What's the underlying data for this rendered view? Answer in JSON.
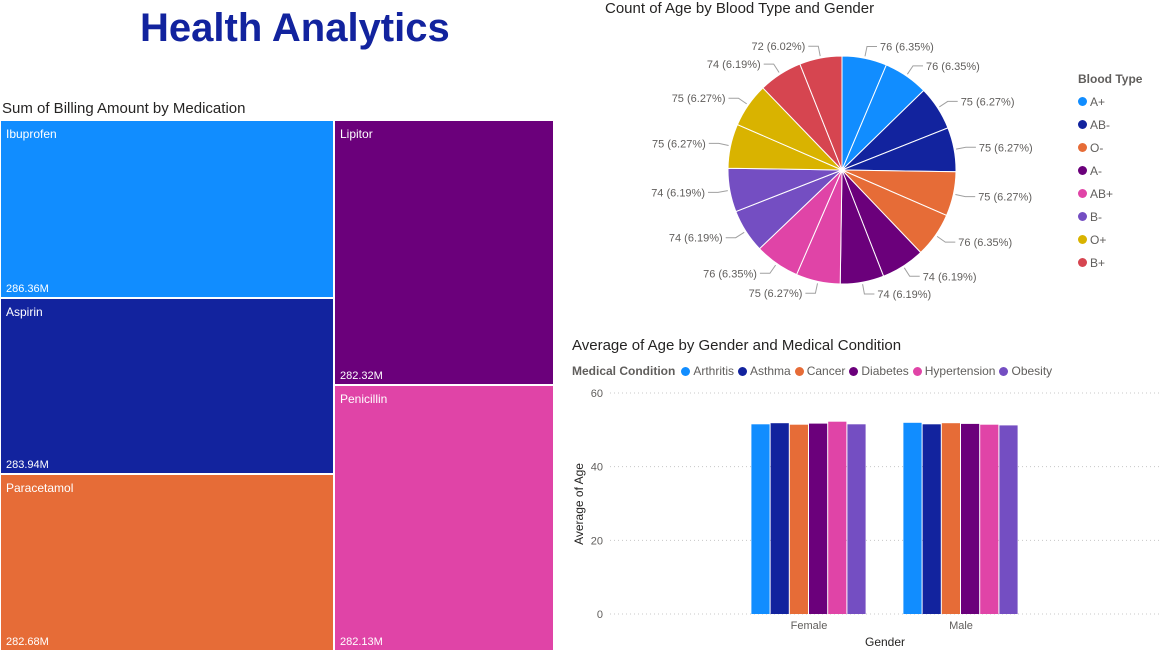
{
  "page": {
    "title": "Health Analytics"
  },
  "colors": {
    "title": "#12239E",
    "A+": "#118DFF",
    "AB-": "#12239E",
    "O-": "#E66C37",
    "A-": "#6B007B",
    "AB+": "#E044A7",
    "B-": "#744EC2",
    "O+": "#D9B300",
    "B+": "#D64550"
  },
  "treemap": {
    "title": "Sum of Billing Amount by Medication",
    "tiles": [
      {
        "label": "Ibuprofen",
        "value": "286.36M",
        "color": "#118DFF"
      },
      {
        "label": "Aspirin",
        "value": "283.94M",
        "color": "#12239E"
      },
      {
        "label": "Paracetamol",
        "value": "282.68M",
        "color": "#E66C37"
      },
      {
        "label": "Lipitor",
        "value": "282.32M",
        "color": "#6B007B"
      },
      {
        "label": "Penicillin",
        "value": "282.13M",
        "color": "#E044A7"
      }
    ]
  },
  "chart_data": [
    {
      "type": "treemap",
      "title": "Sum of Billing Amount by Medication",
      "categories": [
        "Ibuprofen",
        "Aspirin",
        "Paracetamol",
        "Lipitor",
        "Penicillin"
      ],
      "values": [
        286.36,
        283.94,
        282.68,
        282.32,
        282.13
      ],
      "value_labels": [
        "286.36M",
        "283.94M",
        "282.68M",
        "282.32M",
        "282.13M"
      ]
    },
    {
      "type": "pie",
      "title": "Count of Age by Blood Type and Gender",
      "legend_title": "Blood Type",
      "legend": [
        "A+",
        "AB-",
        "O-",
        "A-",
        "AB+",
        "B-",
        "O+",
        "B+"
      ],
      "legend_position": "right",
      "slices": [
        {
          "group": "A+",
          "value": 76,
          "label": "76 (6.35%)"
        },
        {
          "group": "A+",
          "value": 76,
          "label": "76 (6.35%)"
        },
        {
          "group": "AB-",
          "value": 75,
          "label": "75 (6.27%)"
        },
        {
          "group": "AB-",
          "value": 75,
          "label": "75 (6.27%)"
        },
        {
          "group": "O-",
          "value": 75,
          "label": "75 (6.27%)"
        },
        {
          "group": "O-",
          "value": 76,
          "label": "76 (6.35%)"
        },
        {
          "group": "A-",
          "value": 74,
          "label": "74 (6.19%)"
        },
        {
          "group": "A-",
          "value": 74,
          "label": "74 (6.19%)"
        },
        {
          "group": "AB+",
          "value": 75,
          "label": "75 (6.27%)"
        },
        {
          "group": "AB+",
          "value": 76,
          "label": "76 (6.35%)"
        },
        {
          "group": "B-",
          "value": 74,
          "label": "74 (6.19%)"
        },
        {
          "group": "B-",
          "value": 74,
          "label": "74 (6.19%)"
        },
        {
          "group": "O+",
          "value": 75,
          "label": "75 (6.27%)"
        },
        {
          "group": "O+",
          "value": 75,
          "label": "75 (6.27%)"
        },
        {
          "group": "B+",
          "value": 74,
          "label": "74 (6.19%)"
        },
        {
          "group": "B+",
          "value": 72,
          "label": "72 (6.02%)"
        }
      ]
    },
    {
      "type": "bar",
      "title": "Average of Age by Gender and Medical Condition",
      "legend_title": "Medical Condition",
      "legend_position": "top-left",
      "categories": [
        "Female",
        "Male"
      ],
      "xlabel": "Gender",
      "ylabel": "Average of Age",
      "ylim": [
        0,
        60
      ],
      "yticks": [
        0,
        20,
        40,
        60
      ],
      "grid": true,
      "series": [
        {
          "name": "Arthritis",
          "color": "#118DFF",
          "values": [
            51.5,
            51.9
          ]
        },
        {
          "name": "Asthma",
          "color": "#12239E",
          "values": [
            51.8,
            51.5
          ]
        },
        {
          "name": "Cancer",
          "color": "#E66C37",
          "values": [
            51.4,
            51.8
          ]
        },
        {
          "name": "Diabetes",
          "color": "#6B007B",
          "values": [
            51.7,
            51.6
          ]
        },
        {
          "name": "Hypertension",
          "color": "#E044A7",
          "values": [
            52.2,
            51.4
          ]
        },
        {
          "name": "Obesity",
          "color": "#744EC2",
          "values": [
            51.5,
            51.2
          ]
        }
      ]
    }
  ]
}
